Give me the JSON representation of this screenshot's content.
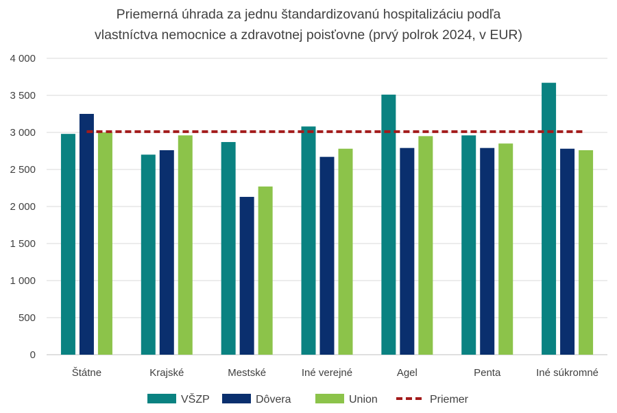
{
  "chart_data": {
    "type": "bar",
    "title_line1": "Priemerná úhrada za jednu štandardizovanú hospitalizáciu podľa",
    "title_line2": "vlastníctva nemocnice a zdravotnej poisťovne (prvý polrok 2024, v EUR)",
    "categories": [
      "Štátne",
      "Krajské",
      "Mestské",
      "Iné verejné",
      "Agel",
      "Penta",
      "Iné súkromné"
    ],
    "series": [
      {
        "name": "VŠZP",
        "color": "#0a8281",
        "values": [
          2980,
          2700,
          2870,
          3080,
          3510,
          2960,
          3670
        ]
      },
      {
        "name": "Dôvera",
        "color": "#0a2f6e",
        "values": [
          3250,
          2760,
          2130,
          2670,
          2790,
          2790,
          2780
        ]
      },
      {
        "name": "Union",
        "color": "#8cc34a",
        "values": [
          3000,
          2960,
          2270,
          2780,
          2950,
          2850,
          2760
        ]
      }
    ],
    "average": {
      "name": "Priemer",
      "color": "#a31b1b",
      "value": 3010
    },
    "ylim": [
      0,
      4000
    ],
    "yticks": [
      0,
      500,
      1000,
      1500,
      2000,
      2500,
      3000,
      3500,
      4000
    ],
    "ytick_labels": [
      "0",
      "500",
      "1 000",
      "1 500",
      "2 000",
      "2 500",
      "3 000",
      "3 500",
      "4 000"
    ],
    "grid": true,
    "legend_position": "bottom"
  }
}
